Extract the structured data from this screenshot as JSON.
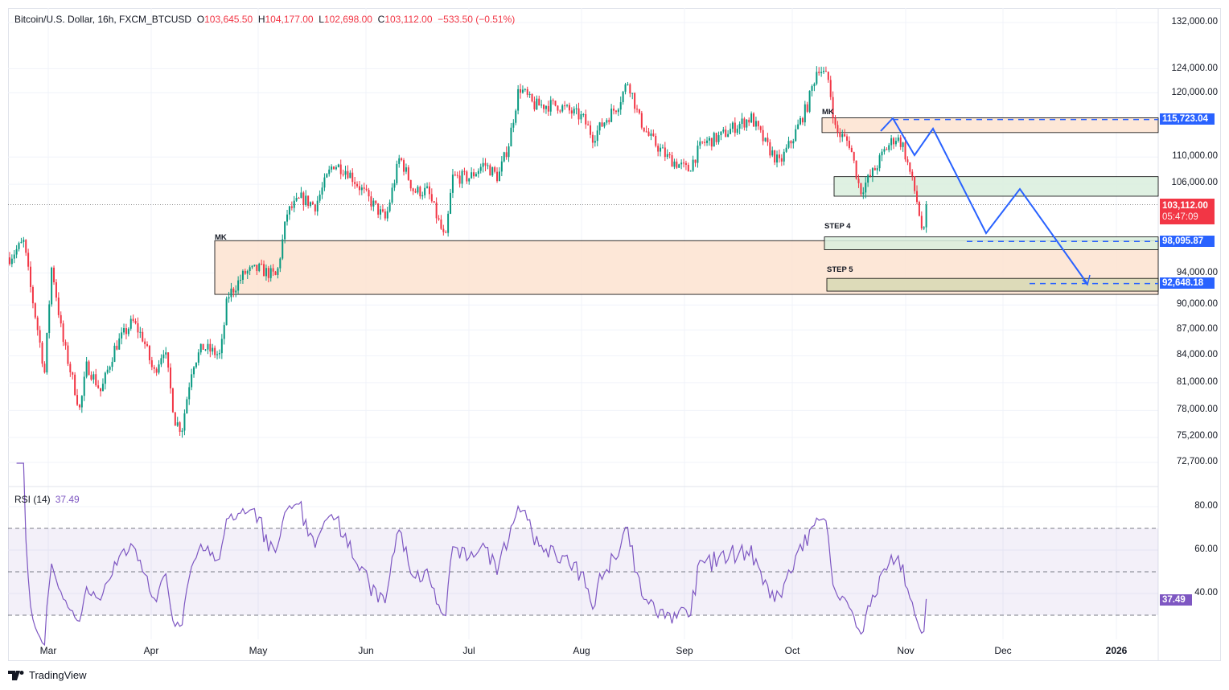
{
  "header": {
    "symbol": "Bitcoin/U.S. Dollar, 16h, FXCM_BTCUSD",
    "open_label": "O",
    "open": "103,645.50",
    "high_label": "H",
    "high": "104,177.00",
    "low_label": "L",
    "low": "102,698.00",
    "close_label": "C",
    "close": "103,112.00",
    "change": "−533.50 (−0.51%)"
  },
  "rsi": {
    "label": "RSI (14)",
    "value": "37.49",
    "levels": [
      70,
      50,
      30
    ],
    "axis_ticks": [
      "80.00",
      "60.00",
      "40.00"
    ]
  },
  "price_axis": [
    "132,000.00",
    "124,000.00",
    "120,000.00",
    "110,000.00",
    "106,000.00",
    "94,000.00",
    "90,000.00",
    "87,000.00",
    "84,000.00",
    "81,000.00",
    "78,000.00",
    "75,200.00",
    "72,700.00"
  ],
  "price_tags": {
    "last": "103,112.00",
    "countdown": "05:47:09",
    "t1": "115,723.04",
    "t2": "98,095.87",
    "t3": "92,648.18"
  },
  "time_axis": [
    "Mar",
    "Apr",
    "May",
    "Jun",
    "Jul",
    "Aug",
    "Sep",
    "Oct",
    "Nov",
    "Dec",
    "2026"
  ],
  "zones": {
    "mk1": "MK",
    "mk2": "MK",
    "step4": "STEP 4",
    "step5": "STEP 5"
  },
  "brand": "TradingView",
  "colors": {
    "up": "#089981",
    "down": "#f23645",
    "rsi": "#7e57c2",
    "drawing": "#2962ff"
  },
  "chart_data": {
    "type": "candlestick",
    "title": "Bitcoin/U.S. Dollar, 16h, FXCM_BTCUSD",
    "scale": "log",
    "ylim": [
      71500,
      134000
    ],
    "approx_close_path": [
      [
        "Feb 18",
        96000
      ],
      [
        "Feb 22",
        98000
      ],
      [
        "Feb 24",
        92000
      ],
      [
        "Feb 28",
        82000
      ],
      [
        "Mar 2",
        95000
      ],
      [
        "Mar 5",
        86000
      ],
      [
        "Mar 10",
        78000
      ],
      [
        "Mar 12",
        83000
      ],
      [
        "Mar 16",
        80000
      ],
      [
        "Mar 20",
        85000
      ],
      [
        "Mar 25",
        88000
      ],
      [
        "Mar 28",
        86000
      ],
      [
        "Mar 31",
        82000
      ],
      [
        "Apr 3",
        85000
      ],
      [
        "Apr 6",
        77000
      ],
      [
        "Apr 8",
        76000
      ],
      [
        "Apr 11",
        83000
      ],
      [
        "Apr 14",
        85000
      ],
      [
        "Apr 19",
        84000
      ],
      [
        "Apr 21",
        91000
      ],
      [
        "Apr 26",
        94000
      ],
      [
        "Apr 30",
        94500
      ],
      [
        "May 5",
        93500
      ],
      [
        "May 8",
        102000
      ],
      [
        "May 12",
        104000
      ],
      [
        "May 16",
        103000
      ],
      [
        "May 21",
        109000
      ],
      [
        "May 25",
        108000
      ],
      [
        "May 31",
        104000
      ],
      [
        "Jun 5",
        101000
      ],
      [
        "Jun 9",
        110000
      ],
      [
        "Jun 13",
        105000
      ],
      [
        "Jun 17",
        105000
      ],
      [
        "Jun 22",
        98000
      ],
      [
        "Jun 24",
        107000
      ],
      [
        "Jun 29",
        107000
      ],
      [
        "Jul 3",
        109000
      ],
      [
        "Jul 7",
        107000
      ],
      [
        "Jul 10",
        112000
      ],
      [
        "Jul 13",
        121000
      ],
      [
        "Jul 17",
        118000
      ],
      [
        "Jul 24",
        118000
      ],
      [
        "Jul 31",
        116000
      ],
      [
        "Aug 3",
        113000
      ],
      [
        "Aug 7",
        116000
      ],
      [
        "Aug 10",
        118000
      ],
      [
        "Aug 13",
        122000
      ],
      [
        "Aug 16",
        116000
      ],
      [
        "Aug 19",
        113000
      ],
      [
        "Aug 24",
        110000
      ],
      [
        "Aug 30",
        108000
      ],
      [
        "Sep 3",
        112000
      ],
      [
        "Sep 8",
        113000
      ],
      [
        "Sep 12",
        114500
      ],
      [
        "Sep 17",
        116000
      ],
      [
        "Sep 21",
        112000
      ],
      [
        "Sep 25",
        109000
      ],
      [
        "Sep 29",
        113000
      ],
      [
        "Oct 3",
        118000
      ],
      [
        "Oct 6",
        124500
      ],
      [
        "Oct 9",
        122000
      ],
      [
        "Oct 11",
        114000
      ],
      [
        "Oct 15",
        112000
      ],
      [
        "Oct 18",
        105000
      ],
      [
        "Oct 22",
        108000
      ],
      [
        "Oct 25",
        111000
      ],
      [
        "Oct 28",
        113000
      ],
      [
        "Oct 30",
        112000
      ],
      [
        "Nov 1",
        108000
      ],
      [
        "Nov 3",
        104000
      ],
      [
        "Nov 5",
        98500
      ],
      [
        "Nov 6",
        103112
      ]
    ],
    "last_close": 103112,
    "zones": [
      {
        "label": "MK",
        "from": "Apr 20",
        "to": "projection",
        "low": 91300,
        "high": 98200
      },
      {
        "label": "MK",
        "from": "Oct 9",
        "to": "projection",
        "low": 113700,
        "high": 116000
      },
      {
        "label": "",
        "from": "Oct 12",
        "to": "projection",
        "low": 104300,
        "high": 107100
      },
      {
        "label": "STEP 4",
        "from": "Oct 9",
        "to": "projection",
        "low": 97000,
        "high": 98700
      },
      {
        "label": "STEP 5",
        "from": "Oct 10",
        "to": "projection",
        "low": 91700,
        "high": 93300
      }
    ],
    "targets": [
      115723.04,
      98095.87,
      92648.18
    ],
    "rsi_period": 14,
    "rsi_last": 37.49
  }
}
